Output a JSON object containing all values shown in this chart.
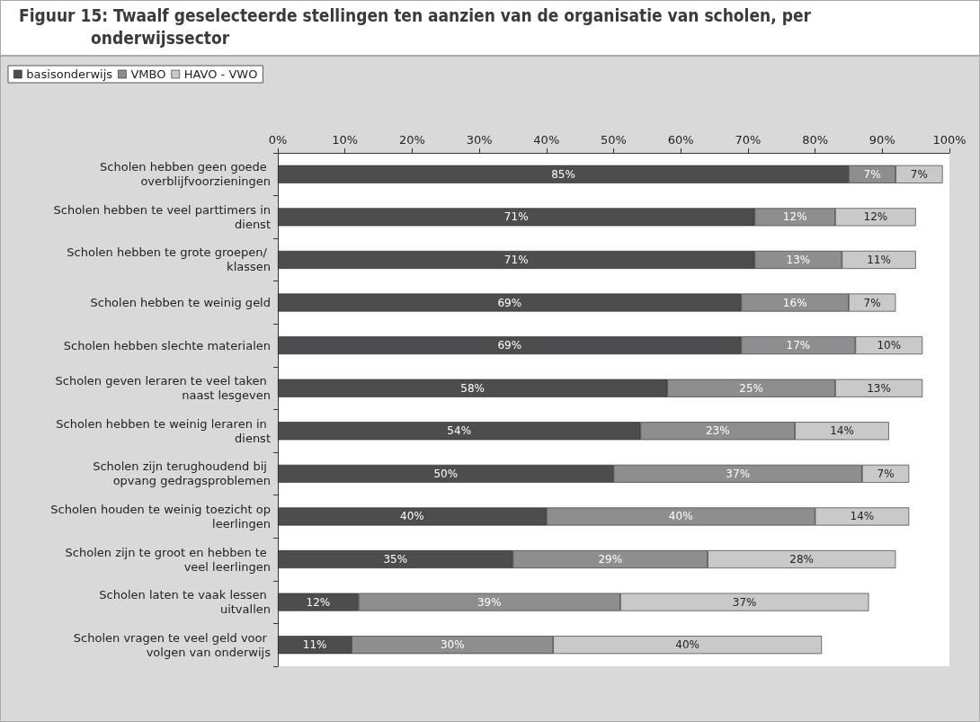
{
  "chart_data": {
    "type": "bar",
    "orientation": "horizontal",
    "stacked": true,
    "title": "Figuur 15: Twaalf geselecteerde stellingen ten aanzien van de organisatie van scholen, per onderwijssector",
    "categories": [
      "Scholen hebben geen goede overblijfvoorzieningen",
      "Scholen hebben te veel parttimers in dienst",
      "Scholen hebben te grote groepen/ klassen",
      "Scholen hebben te weinig geld",
      "Scholen hebben slechte materialen",
      "Scholen geven leraren te veel taken naast lesgeven",
      "Scholen hebben te weinig leraren in dienst",
      "Scholen zijn terughoudend bij opvang gedragsproblemen",
      "Scholen houden te weinig toezicht op leerlingen",
      "Scholen zijn te groot en hebben te veel leerlingen",
      "Scholen laten te vaak lessen uitvallen",
      "Scholen vragen te veel geld voor volgen van onderwijs"
    ],
    "series": [
      {
        "name": "basisonderwijs",
        "color": "#4d4d4f",
        "values": [
          85,
          71,
          71,
          69,
          69,
          58,
          54,
          50,
          40,
          35,
          12,
          11
        ],
        "value_labels": [
          "85%",
          "71%",
          "71%",
          "69%",
          "69%",
          "58%",
          "54%",
          "50%",
          "40%",
          "35%",
          "12%",
          "11%"
        ]
      },
      {
        "name": "VMBO",
        "color": "#8e8e90",
        "values": [
          7,
          12,
          13,
          16,
          17,
          25,
          23,
          37,
          40,
          29,
          39,
          30
        ],
        "value_labels": [
          "7%",
          "12%",
          "13%",
          "16%",
          "17%",
          "25%",
          "23%",
          "37%",
          "40%",
          "29%",
          "39%",
          "30%"
        ]
      },
      {
        "name": "HAVO - VWO",
        "color": "#c9c9cb",
        "values": [
          7,
          12,
          11,
          7,
          10,
          13,
          14,
          7,
          14,
          28,
          37,
          40
        ],
        "value_labels": [
          "7%",
          "12%",
          "11%",
          "7%",
          "10%",
          "13%",
          "14%",
          "7%",
          "14%",
          "28%",
          "37%",
          "40%"
        ]
      }
    ],
    "xlim": [
      0,
      100
    ],
    "xticks": [
      {
        "value": 0,
        "label": "0%"
      },
      {
        "value": 10,
        "label": "10%"
      },
      {
        "value": 20,
        "label": "20%"
      },
      {
        "value": 30,
        "label": "30%"
      },
      {
        "value": 40,
        "label": "40%"
      },
      {
        "value": 50,
        "label": "50%"
      },
      {
        "value": 60,
        "label": "60%"
      },
      {
        "value": 70,
        "label": "70%"
      },
      {
        "value": 80,
        "label": "80%"
      },
      {
        "value": 90,
        "label": "90%"
      },
      {
        "value": 100,
        "label": "100%"
      }
    ],
    "grid": false,
    "legend": "top left"
  }
}
